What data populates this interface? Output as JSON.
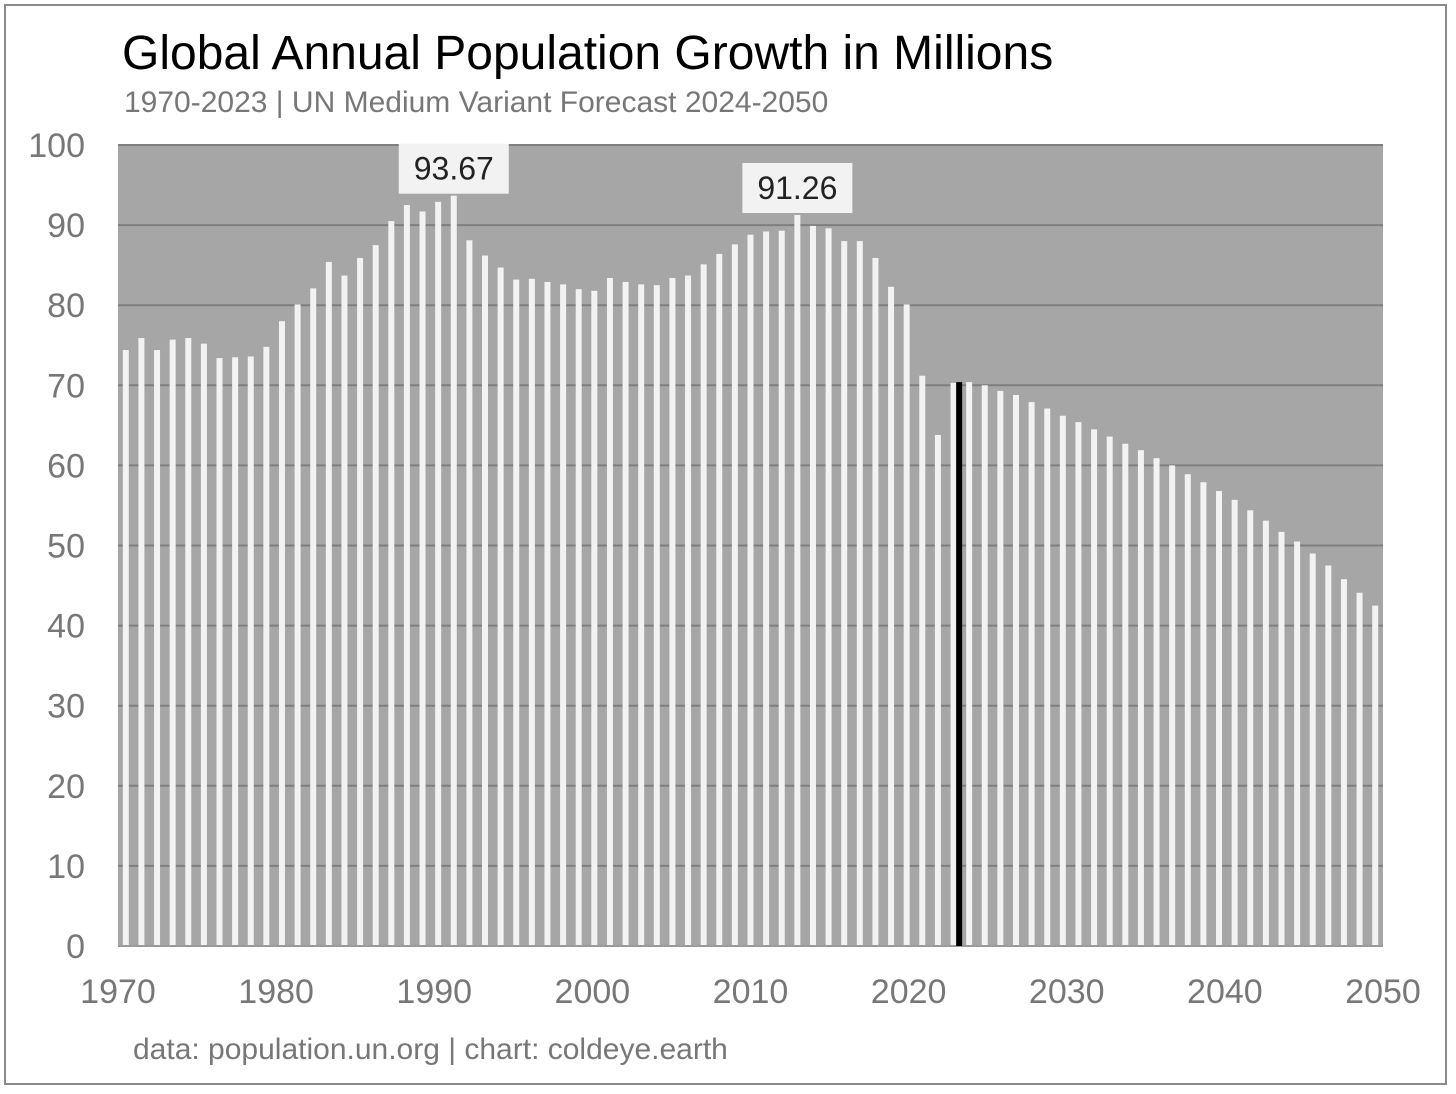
{
  "chart_data": {
    "type": "bar",
    "title": "Global Annual Population Growth in Millions",
    "subtitle": "1970-2023 | UN Medium Variant Forecast 2024-2050",
    "credit": "data: population.un.org | chart: coldeye.earth",
    "xlabel": "",
    "ylabel": "",
    "ylim": [
      0,
      100
    ],
    "yticks": [
      "0",
      "10",
      "20",
      "30",
      "40",
      "50",
      "60",
      "70",
      "80",
      "90",
      "100"
    ],
    "xlim": [
      1970,
      2050
    ],
    "xticks": [
      "1970",
      "1980",
      "1990",
      "2000",
      "2010",
      "2020",
      "2030",
      "2040",
      "2050"
    ],
    "grid": true,
    "legend": "none",
    "x": [
      1970,
      1971,
      1972,
      1973,
      1974,
      1975,
      1976,
      1977,
      1978,
      1979,
      1980,
      1981,
      1982,
      1983,
      1984,
      1985,
      1986,
      1987,
      1988,
      1989,
      1990,
      1991,
      1992,
      1993,
      1994,
      1995,
      1996,
      1997,
      1998,
      1999,
      2000,
      2001,
      2002,
      2003,
      2004,
      2005,
      2006,
      2007,
      2008,
      2009,
      2010,
      2011,
      2012,
      2013,
      2014,
      2015,
      2016,
      2017,
      2018,
      2019,
      2020,
      2021,
      2022,
      2023,
      2024,
      2025,
      2026,
      2027,
      2028,
      2029,
      2030,
      2031,
      2032,
      2033,
      2034,
      2035,
      2036,
      2037,
      2038,
      2039,
      2040,
      2041,
      2042,
      2043,
      2044,
      2045,
      2046,
      2047,
      2048,
      2049,
      2050
    ],
    "values": [
      74.4,
      75.9,
      74.4,
      75.7,
      75.9,
      75.2,
      73.4,
      73.5,
      73.6,
      74.8,
      78,
      80.1,
      82.1,
      85.4,
      83.7,
      85.9,
      87.5,
      90.5,
      92.5,
      91.7,
      92.9,
      93.67,
      88.1,
      86.2,
      84.7,
      83.2,
      83.3,
      82.9,
      82.6,
      82,
      81.8,
      83.4,
      82.9,
      82.6,
      82.5,
      83.4,
      83.7,
      85.1,
      86.4,
      87.6,
      88.8,
      89.2,
      89.3,
      91.26,
      89.9,
      89.6,
      88,
      88,
      85.9,
      82.3,
      80.1,
      71.2,
      63.8,
      70.3,
      70.4,
      70,
      69.3,
      68.8,
      67.9,
      67.1,
      66.2,
      65.4,
      64.5,
      63.6,
      62.7,
      61.9,
      60.9,
      60,
      58.9,
      57.9,
      56.8,
      55.7,
      54.4,
      53.1,
      51.7,
      50.5,
      49,
      47.5,
      45.8,
      44.1,
      42.5
    ],
    "data_labels": [
      {
        "x": 1991,
        "text": "93.67"
      },
      {
        "x": 2013,
        "text": "91.26"
      }
    ],
    "marker_line_x": 2024,
    "colors": {
      "plot_background": "#a6a6a6",
      "bar": "#f2f2f2",
      "gridline": "#7f7f7f",
      "marker_line": "#000000",
      "label_box": "#f2f2f2"
    }
  }
}
